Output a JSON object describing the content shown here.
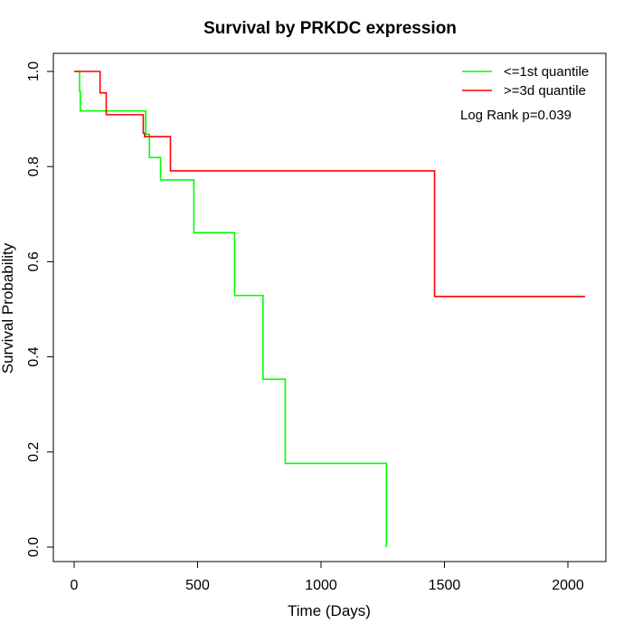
{
  "chart_data": {
    "type": "line",
    "step": true,
    "title": "Survival by PRKDC expression",
    "xlabel": "Time (Days)",
    "ylabel": "Survival Probability",
    "xlim": [
      0,
      2070
    ],
    "ylim": [
      0,
      1
    ],
    "xticks": [
      0,
      500,
      1000,
      1500,
      2000
    ],
    "xtick_labels": [
      "0",
      "500",
      "1000",
      "1500",
      "2000"
    ],
    "yticks": [
      0,
      0.2,
      0.4,
      0.6,
      0.8,
      1
    ],
    "ytick_labels": [
      "0.0",
      "0.2",
      "0.4",
      "0.6",
      "0.8",
      "1.0"
    ],
    "grid": false,
    "legend_position": "top-right",
    "annotation": "Log Rank p=0.039",
    "series": [
      {
        "name": "<=1st quantile",
        "color": "#00ff00",
        "x": [
          0,
          22,
          25,
          290,
          305,
          350,
          485,
          650,
          765,
          855,
          1265
        ],
        "y": [
          1.0,
          0.958,
          0.917,
          0.868,
          0.819,
          0.772,
          0.661,
          0.529,
          0.353,
          0.176,
          0.0
        ]
      },
      {
        "name": ">=3d quantile",
        "color": "#ff0000",
        "x": [
          0,
          105,
          130,
          280,
          285,
          390,
          1460,
          2070
        ],
        "y": [
          1.0,
          0.955,
          0.909,
          0.87,
          0.863,
          0.791,
          0.527,
          0.527
        ]
      }
    ]
  }
}
